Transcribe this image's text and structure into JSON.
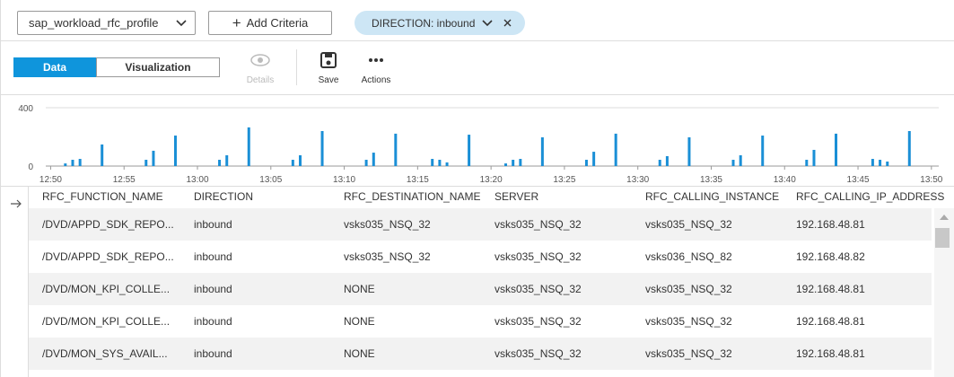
{
  "filter_bar": {
    "profile": "sap_workload_rfc_profile",
    "add_criteria": "Add Criteria",
    "filter_chip": "DIRECTION: inbound"
  },
  "toolbar": {
    "tabs": [
      "Data",
      "Visualization"
    ],
    "actions": [
      "Details",
      "Save",
      "Actions"
    ]
  },
  "chart_data": {
    "type": "bar",
    "color": "#1a8fd6",
    "grid": true,
    "x": [
      "12:51:00",
      "12:51:30",
      "12:52:00",
      "12:53:30",
      "12:56:30",
      "12:57:00",
      "12:58:30",
      "13:01:30",
      "13:02:00",
      "13:03:30",
      "13:06:30",
      "13:07:00",
      "13:08:30",
      "13:11:30",
      "13:12:00",
      "13:13:30",
      "13:16:00",
      "13:16:30",
      "13:17:00",
      "13:18:30",
      "13:21:00",
      "13:21:30",
      "13:22:00",
      "13:23:30",
      "13:26:30",
      "13:27:00",
      "13:28:30",
      "13:31:30",
      "13:32:00",
      "13:33:30",
      "13:36:30",
      "13:37:00",
      "13:38:30",
      "13:41:30",
      "13:42:00",
      "13:43:30",
      "13:46:00",
      "13:46:30",
      "13:47:00",
      "13:48:30"
    ],
    "values": [
      18,
      43,
      49,
      148,
      43,
      105,
      209,
      43,
      74,
      265,
      43,
      74,
      240,
      43,
      92,
      222,
      49,
      43,
      25,
      215,
      18,
      43,
      49,
      197,
      43,
      98,
      222,
      43,
      68,
      197,
      43,
      74,
      209,
      43,
      111,
      222,
      49,
      43,
      31,
      240
    ],
    "xlim": [
      "12:49:40",
      "13:50:30"
    ],
    "xticks": [
      "12:50",
      "12:55",
      "13:00",
      "13:05",
      "13:10",
      "13:15",
      "13:20",
      "13:25",
      "13:30",
      "13:35",
      "13:40",
      "13:45",
      "13:50"
    ],
    "ylim": [
      0,
      400
    ],
    "yticks": [
      0,
      400
    ]
  },
  "table": {
    "columns": [
      "RFC_FUNCTION_NAME",
      "DIRECTION",
      "RFC_DESTINATION_NAME",
      "SERVER",
      "RFC_CALLING_INSTANCE",
      "RFC_CALLING_IP_ADDRESS"
    ],
    "rows": [
      [
        "/DVD/APPD_SDK_REPO...",
        "inbound",
        "vsks035_NSQ_32",
        "vsks035_NSQ_32",
        "vsks035_NSQ_32",
        "192.168.48.81"
      ],
      [
        "/DVD/APPD_SDK_REPO...",
        "inbound",
        "vsks035_NSQ_32",
        "vsks035_NSQ_32",
        "vsks036_NSQ_82",
        "192.168.48.82"
      ],
      [
        "/DVD/MON_KPI_COLLE...",
        "inbound",
        "NONE",
        "vsks035_NSQ_32",
        "vsks035_NSQ_32",
        "192.168.48.81"
      ],
      [
        "/DVD/MON_KPI_COLLE...",
        "inbound",
        "NONE",
        "vsks035_NSQ_32",
        "vsks035_NSQ_32",
        "192.168.48.81"
      ],
      [
        "/DVD/MON_SYS_AVAIL...",
        "inbound",
        "NONE",
        "vsks035_NSQ_32",
        "vsks035_NSQ_32",
        "192.168.48.81"
      ]
    ]
  }
}
